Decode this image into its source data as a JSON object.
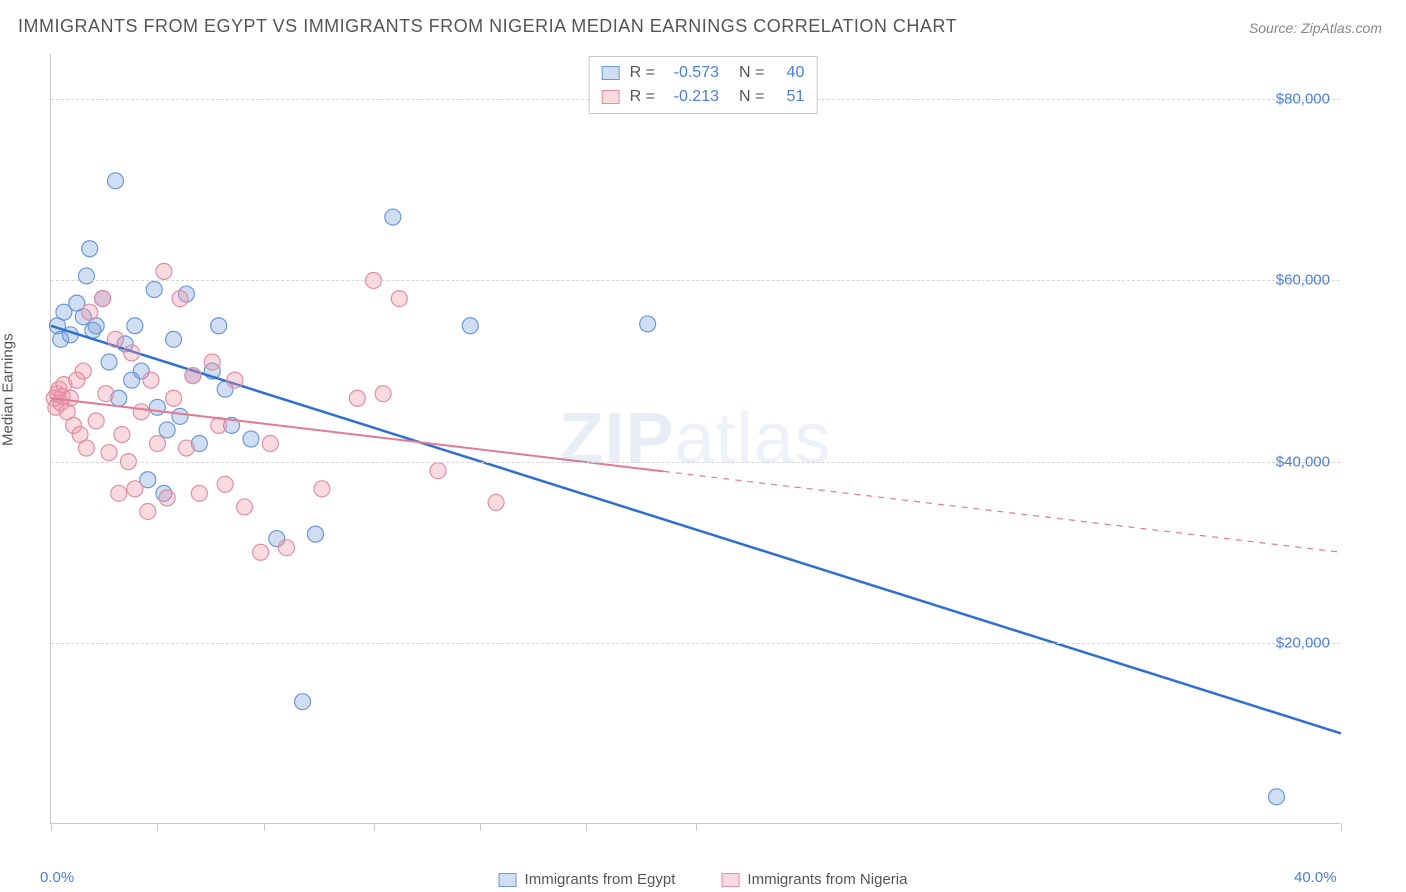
{
  "title": "IMMIGRANTS FROM EGYPT VS IMMIGRANTS FROM NIGERIA MEDIAN EARNINGS CORRELATION CHART",
  "source": "Source: ZipAtlas.com",
  "ylabel": "Median Earnings",
  "watermark_bold": "ZIP",
  "watermark_thin": "atlas",
  "chart": {
    "type": "scatter-with-regression",
    "xlim": [
      0,
      40
    ],
    "ylim": [
      0,
      85000
    ],
    "x_tick_positions": [
      0,
      3.3,
      6.6,
      10,
      13.3,
      16.6,
      20,
      40
    ],
    "x_axis_labels": [
      {
        "pos": 0,
        "text": "0.0%"
      },
      {
        "pos": 40,
        "text": "40.0%"
      }
    ],
    "y_gridlines": [
      20000,
      40000,
      60000,
      80000
    ],
    "y_tick_labels": [
      {
        "v": 20000,
        "text": "$20,000"
      },
      {
        "v": 40000,
        "text": "$40,000"
      },
      {
        "v": 60000,
        "text": "$60,000"
      },
      {
        "v": 80000,
        "text": "$80,000"
      }
    ],
    "background_color": "#ffffff",
    "grid_color": "#d6d6d6",
    "axis_color": "#c9c9c9",
    "marker_radius": 8,
    "marker_stroke_width": 1.2,
    "series": [
      {
        "name": "Immigrants from Egypt",
        "fill": "rgba(120,160,220,0.35)",
        "stroke": "#6d99d8",
        "reg_color": "#2f6fd0",
        "reg_width": 2.5,
        "R": "-0.573",
        "N": "40",
        "regression": {
          "x1": 0,
          "y1": 55000,
          "x2": 40,
          "y2": 10000,
          "solid_until_x": 40
        },
        "points": [
          [
            0.2,
            55000
          ],
          [
            0.3,
            53500
          ],
          [
            0.4,
            56500
          ],
          [
            0.6,
            54000
          ],
          [
            0.8,
            57500
          ],
          [
            1.0,
            56000
          ],
          [
            1.1,
            60500
          ],
          [
            1.2,
            63500
          ],
          [
            1.3,
            54500
          ],
          [
            1.4,
            55000
          ],
          [
            1.6,
            58000
          ],
          [
            1.8,
            51000
          ],
          [
            2.0,
            71000
          ],
          [
            2.1,
            47000
          ],
          [
            2.3,
            53000
          ],
          [
            2.5,
            49000
          ],
          [
            2.6,
            55000
          ],
          [
            2.8,
            50000
          ],
          [
            3.0,
            38000
          ],
          [
            3.2,
            59000
          ],
          [
            3.3,
            46000
          ],
          [
            3.5,
            36500
          ],
          [
            3.6,
            43500
          ],
          [
            3.8,
            53500
          ],
          [
            4.0,
            45000
          ],
          [
            4.2,
            58500
          ],
          [
            4.4,
            49500
          ],
          [
            4.6,
            42000
          ],
          [
            5.0,
            50000
          ],
          [
            5.2,
            55000
          ],
          [
            5.4,
            48000
          ],
          [
            5.6,
            44000
          ],
          [
            6.2,
            42500
          ],
          [
            7.0,
            31500
          ],
          [
            7.8,
            13500
          ],
          [
            10.6,
            67000
          ],
          [
            13.0,
            55000
          ],
          [
            18.5,
            55200
          ],
          [
            38.0,
            3000
          ],
          [
            8.2,
            32000
          ]
        ]
      },
      {
        "name": "Immigrants from Nigeria",
        "fill": "rgba(240,150,170,0.35)",
        "stroke": "#e08fa4",
        "reg_color": "#e27a95",
        "reg_width": 2,
        "R": "-0.213",
        "N": "51",
        "regression": {
          "x1": 0,
          "y1": 47000,
          "x2": 40,
          "y2": 30000,
          "solid_until_x": 19
        },
        "points": [
          [
            0.1,
            47000
          ],
          [
            0.15,
            46000
          ],
          [
            0.2,
            47500
          ],
          [
            0.25,
            48000
          ],
          [
            0.3,
            46500
          ],
          [
            0.35,
            47200
          ],
          [
            0.4,
            48500
          ],
          [
            0.5,
            45500
          ],
          [
            0.6,
            47000
          ],
          [
            0.7,
            44000
          ],
          [
            0.8,
            49000
          ],
          [
            0.9,
            43000
          ],
          [
            1.0,
            50000
          ],
          [
            1.1,
            41500
          ],
          [
            1.2,
            56500
          ],
          [
            1.4,
            44500
          ],
          [
            1.6,
            58000
          ],
          [
            1.7,
            47500
          ],
          [
            1.8,
            41000
          ],
          [
            2.0,
            53500
          ],
          [
            2.1,
            36500
          ],
          [
            2.2,
            43000
          ],
          [
            2.4,
            40000
          ],
          [
            2.5,
            52000
          ],
          [
            2.6,
            37000
          ],
          [
            2.8,
            45500
          ],
          [
            3.0,
            34500
          ],
          [
            3.1,
            49000
          ],
          [
            3.3,
            42000
          ],
          [
            3.5,
            61000
          ],
          [
            3.6,
            36000
          ],
          [
            3.8,
            47000
          ],
          [
            4.0,
            58000
          ],
          [
            4.2,
            41500
          ],
          [
            4.4,
            49500
          ],
          [
            4.6,
            36500
          ],
          [
            5.0,
            51000
          ],
          [
            5.2,
            44000
          ],
          [
            5.4,
            37500
          ],
          [
            5.7,
            49000
          ],
          [
            6.0,
            35000
          ],
          [
            6.5,
            30000
          ],
          [
            6.8,
            42000
          ],
          [
            7.3,
            30500
          ],
          [
            8.4,
            37000
          ],
          [
            9.5,
            47000
          ],
          [
            10.0,
            60000
          ],
          [
            10.8,
            58000
          ],
          [
            12.0,
            39000
          ],
          [
            13.8,
            35500
          ],
          [
            10.3,
            47500
          ]
        ]
      }
    ]
  },
  "corr_legend": {
    "r_label": "R =",
    "n_label": "N ="
  },
  "bottom_legend_labels": [
    "Immigrants from Egypt",
    "Immigrants from Nigeria"
  ]
}
